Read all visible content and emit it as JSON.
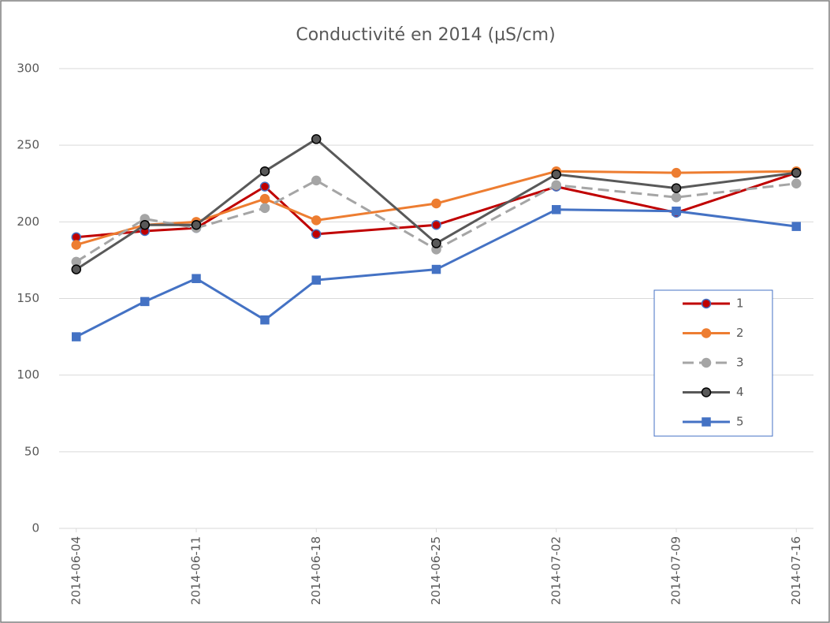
{
  "chart_data": {
    "type": "line",
    "title": "Conductivité en 2014 (µS/cm)",
    "x": [
      "2014-06-04",
      "2014-06-08",
      "2014-06-11",
      "2014-06-15",
      "2014-06-18",
      "2014-06-25",
      "2014-07-02",
      "2014-07-09",
      "2014-07-16"
    ],
    "xlim": [
      "2014-06-03",
      "2014-07-17"
    ],
    "xticks": [
      "2014-06-04",
      "2014-06-11",
      "2014-06-18",
      "2014-06-25",
      "2014-07-02",
      "2014-07-09",
      "2014-07-16"
    ],
    "ylim": [
      0,
      300
    ],
    "yticks": [
      0,
      50,
      100,
      150,
      200,
      250,
      300
    ],
    "grid": true,
    "legend": "right",
    "series": [
      {
        "name": "1",
        "color": "#c00000",
        "edge": "#4472c4",
        "marker": "circle",
        "dashed": false,
        "values": [
          190,
          194,
          196,
          223,
          192,
          198,
          223,
          206,
          232
        ]
      },
      {
        "name": "2",
        "color": "#ed7d31",
        "edge": "#ed7d31",
        "marker": "circle",
        "dashed": false,
        "values": [
          185,
          198,
          200,
          215,
          201,
          212,
          233,
          232,
          233
        ]
      },
      {
        "name": "3",
        "color": "#a5a5a5",
        "edge": "#a5a5a5",
        "marker": "circle",
        "dashed": true,
        "values": [
          174,
          202,
          196,
          209,
          227,
          182,
          224,
          216,
          225
        ]
      },
      {
        "name": "4",
        "color": "#595959",
        "edge": "#000000",
        "marker": "circle",
        "dashed": false,
        "values": [
          169,
          198,
          198,
          233,
          254,
          186,
          231,
          222,
          232
        ]
      },
      {
        "name": "5",
        "color": "#4472c4",
        "edge": "#4472c4",
        "marker": "square",
        "dashed": false,
        "values": [
          125,
          148,
          163,
          136,
          162,
          169,
          208,
          207,
          197
        ]
      }
    ]
  }
}
